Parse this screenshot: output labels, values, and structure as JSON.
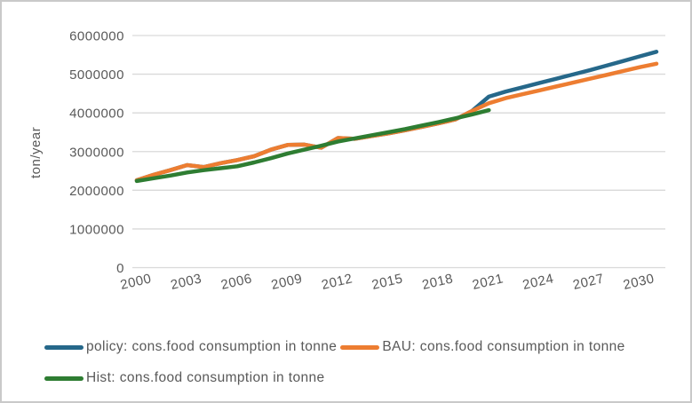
{
  "chart_data": {
    "type": "line",
    "title": "",
    "xlabel": "",
    "ylabel": "ton/year",
    "ylim": [
      0,
      6000000
    ],
    "yticks": [
      0,
      1000000,
      2000000,
      3000000,
      4000000,
      5000000,
      6000000
    ],
    "ytick_labels": [
      "0",
      "1000000",
      "2000000",
      "3000000",
      "4000000",
      "5000000",
      "6000000"
    ],
    "xticks": [
      2000,
      2003,
      2006,
      2009,
      2012,
      2015,
      2018,
      2021,
      2024,
      2027,
      2030
    ],
    "x_range": [
      2000,
      2031
    ],
    "grid": "horizontal-only",
    "gridline_color": "#d9d9d9",
    "axis_text_color": "#595959",
    "legend_position": "bottom-left",
    "series": [
      {
        "name": "policy: cons.food consumption in tonne",
        "color": "#26688a",
        "x_start": 2000,
        "x_end": 2031,
        "values": [
          2260000,
          2400000,
          2520000,
          2650000,
          2600000,
          2700000,
          2780000,
          2880000,
          3050000,
          3170000,
          3180000,
          3100000,
          3350000,
          3330000,
          3400000,
          3470000,
          3550000,
          3640000,
          3730000,
          3830000,
          4050000,
          4420000,
          4550000,
          4660000,
          4770000,
          4880000,
          4990000,
          5100000,
          5220000,
          5340000,
          5460000,
          5580000
        ]
      },
      {
        "name": "BAU: cons.food consumption in tonne",
        "color": "#ed7d31",
        "x_start": 2000,
        "x_end": 2031,
        "values": [
          2260000,
          2400000,
          2520000,
          2650000,
          2600000,
          2700000,
          2780000,
          2880000,
          3050000,
          3170000,
          3180000,
          3100000,
          3350000,
          3330000,
          3400000,
          3470000,
          3550000,
          3640000,
          3730000,
          3830000,
          4050000,
          4250000,
          4380000,
          4480000,
          4580000,
          4680000,
          4780000,
          4880000,
          4980000,
          5080000,
          5180000,
          5270000
        ]
      },
      {
        "name": "Hist: cons.food consumption in tonne",
        "color": "#2e7d32",
        "x_start": 2000,
        "x_end": 2021,
        "values": [
          2240000,
          2310000,
          2380000,
          2460000,
          2520000,
          2570000,
          2620000,
          2720000,
          2830000,
          2950000,
          3050000,
          3150000,
          3260000,
          3340000,
          3420000,
          3500000,
          3580000,
          3670000,
          3760000,
          3860000,
          3960000,
          4070000
        ]
      }
    ]
  }
}
